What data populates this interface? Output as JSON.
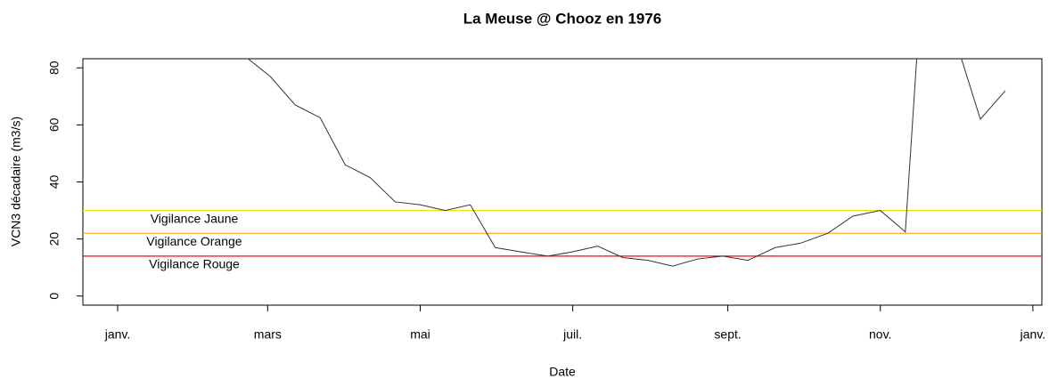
{
  "chart_data": {
    "type": "line",
    "title": "La Meuse @ Chooz en 1976",
    "x_label": "Date",
    "y_label": "VCN3 décadaire (m3/s)",
    "x": [
      51,
      61,
      71,
      81,
      91,
      101,
      111,
      121,
      131,
      141,
      151,
      161,
      172,
      182,
      192,
      202,
      212,
      222,
      232,
      242,
      252,
      263,
      273,
      284,
      294,
      305,
      315,
      325,
      335,
      345,
      355
    ],
    "series": [
      {
        "color": "#333333",
        "values": [
          84,
          77,
          67,
          62.5,
          46,
          41.5,
          33,
          32,
          30,
          32,
          17,
          15.5,
          14,
          15.5,
          17.5,
          13.5,
          12.5,
          10.5,
          13,
          14,
          12.5,
          17,
          18.5,
          22,
          28,
          30,
          22.5,
          156,
          90,
          62,
          72
        ]
      }
    ],
    "xlim": [
      -13.9,
      369.6
    ],
    "xticks": [
      {
        "value": 0,
        "label": "janv."
      },
      {
        "value": 60,
        "label": "mars"
      },
      {
        "value": 121,
        "label": "mai"
      },
      {
        "value": 182,
        "label": "juil."
      },
      {
        "value": 244,
        "label": "sept."
      },
      {
        "value": 305,
        "label": "nov."
      },
      {
        "value": 366,
        "label": "janv."
      }
    ],
    "ylim": [
      -3.2,
      83.2
    ],
    "yticks": [
      0,
      20,
      40,
      60,
      80
    ],
    "thresholds": [
      {
        "label": "Vigilance Jaune",
        "value": 30,
        "color": "#e6e600"
      },
      {
        "label": "Vigilance Orange",
        "value": 22,
        "color": "#ffa500"
      },
      {
        "label": "Vigilance Rouge",
        "value": 14,
        "color": "#ff0000"
      }
    ]
  }
}
